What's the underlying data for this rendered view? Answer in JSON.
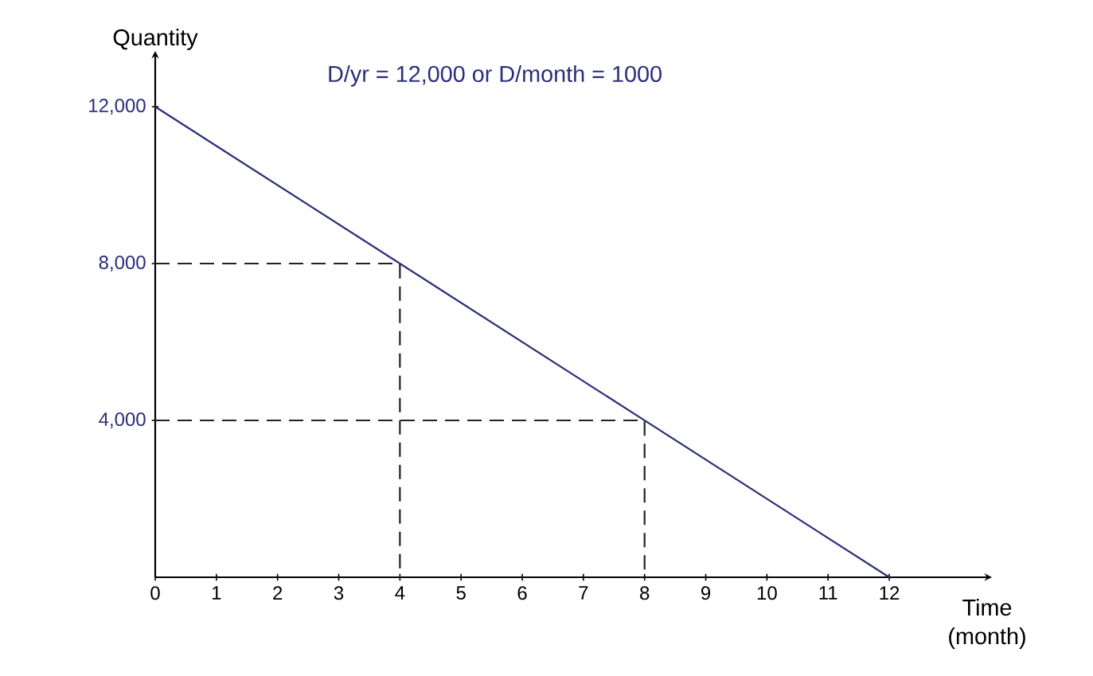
{
  "chart_data": {
    "type": "line",
    "xlabel": "Time (month)",
    "ylabel": "Quantity",
    "annotations": [
      "D/yr = 12,000 or D/month = 1000"
    ],
    "xlim": [
      0,
      13.6
    ],
    "ylim": [
      0,
      13300
    ],
    "xticks": [
      0,
      1,
      2,
      3,
      4,
      5,
      6,
      7,
      8,
      9,
      10,
      11,
      12
    ],
    "yticks": [
      {
        "value": 4000,
        "label": "4,000"
      },
      {
        "value": 8000,
        "label": "8,000"
      },
      {
        "value": 12000,
        "label": "12,000"
      }
    ],
    "series": [
      {
        "color": "#2a2f78",
        "x": [
          0,
          12
        ],
        "values": [
          12000,
          0
        ],
        "line_style": "solid"
      },
      {
        "color": "#222222",
        "x": [
          0,
          4,
          4
        ],
        "values": [
          8000,
          8000,
          0
        ],
        "line_style": "dashed"
      },
      {
        "color": "#222222",
        "x": [
          0,
          8,
          8
        ],
        "values": [
          4000,
          4000,
          0
        ],
        "line_style": "dashed"
      }
    ]
  }
}
